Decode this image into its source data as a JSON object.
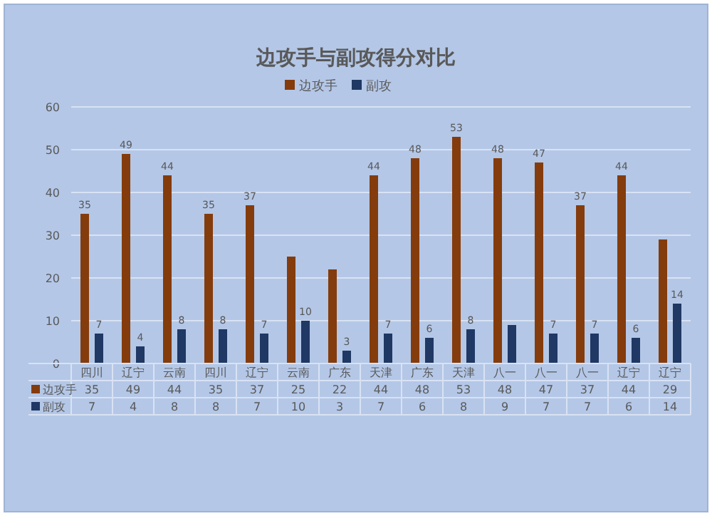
{
  "chart_data": [
    {
      "type": "bar",
      "title": "边攻手与副攻得分对比",
      "categories": [
        "四川",
        "辽宁",
        "云南",
        "四川",
        "辽宁",
        "云南",
        "广东",
        "天津",
        "广东",
        "天津",
        "八一",
        "八一",
        "八一",
        "辽宁",
        "辽宁"
      ],
      "series": [
        {
          "name": "边攻手",
          "color": "#843c0c",
          "values": [
            35,
            49,
            44,
            35,
            37,
            25,
            22,
            44,
            48,
            53,
            48,
            47,
            37,
            44,
            29
          ],
          "value_labels": [
            "35",
            "49",
            "44",
            "35",
            "37",
            null,
            null,
            "44",
            "48",
            "53",
            "48",
            "47",
            "37",
            "44",
            null
          ]
        },
        {
          "name": "副攻",
          "color": "#1f3864",
          "values": [
            7,
            4,
            8,
            8,
            7,
            10,
            3,
            7,
            6,
            8,
            9,
            7,
            7,
            6,
            14
          ],
          "value_labels": [
            "7",
            "4",
            "8",
            "8",
            "7",
            "10",
            "3",
            "7",
            "6",
            "8",
            null,
            "7",
            "7",
            "6",
            "14"
          ]
        }
      ],
      "ylim": [
        0,
        60
      ],
      "yticks": [
        0,
        10,
        20,
        30,
        40,
        50,
        60
      ],
      "grid": "y",
      "legend": "top"
    },
    {
      "type": "other",
      "series": [
        {
          "name": "边攻手",
          "color": "#843c0c"
        },
        {
          "name": "副攻",
          "color": "#1f3864"
        }
      ],
      "annotations": [
        "35",
        "49",
        "44",
        "35",
        "37",
        "25",
        "22",
        "44",
        "48",
        "53",
        "48",
        "47",
        "37",
        "44",
        "29",
        "7",
        "4",
        "8",
        "8",
        "7",
        "10",
        "3",
        "7",
        "6",
        "8",
        "9",
        "7",
        "7",
        "6",
        "14"
      ]
    }
  ]
}
